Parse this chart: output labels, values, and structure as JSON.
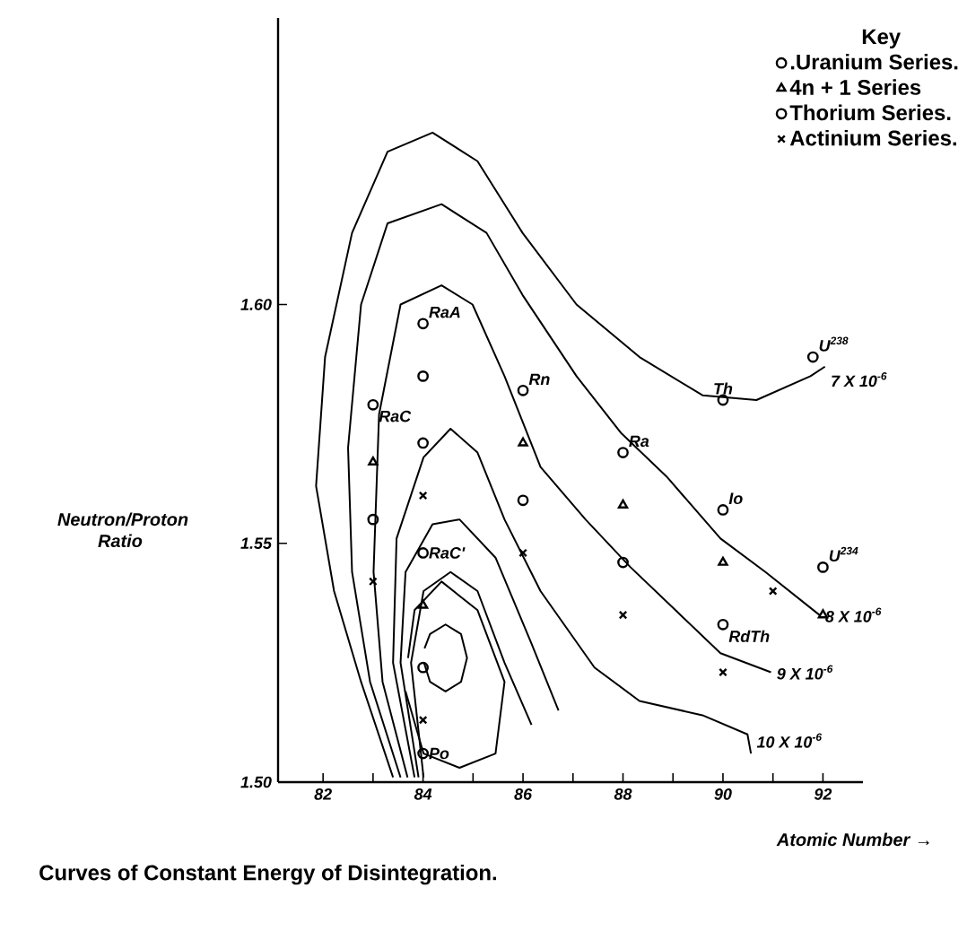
{
  "chart_data": {
    "type": "scatter",
    "title": "Curves of Constant Energy of Disintegration.",
    "xlabel": "Atomic Number →",
    "ylabel": "Neutron/Proton Ratio",
    "legend_title": "Key",
    "legend": "top right",
    "xlim": [
      81.1,
      92.8
    ],
    "ylim": [
      1.5,
      1.66
    ],
    "xticks": [
      82,
      {
        "value": 83,
        "label": null
      },
      84,
      {
        "value": 85,
        "label": null
      },
      86,
      {
        "value": 87,
        "label": null
      },
      88,
      {
        "value": 89,
        "label": null
      },
      90,
      {
        "value": 91,
        "label": null
      },
      92
    ],
    "yticks": [
      {
        "value": 1.5,
        "label": "1.50"
      },
      {
        "value": 1.55,
        "label": "1.55"
      },
      {
        "value": 1.6,
        "label": "1.60"
      }
    ],
    "grid": false,
    "series": [
      {
        "name": ".Uranium Series.",
        "type": "scatter",
        "marker": "circle",
        "color": "#000000",
        "x": [
          91.8,
          90,
          90,
          92,
          88,
          86,
          84,
          83,
          84,
          84
        ],
        "values": [
          1.589,
          1.58,
          1.557,
          1.545,
          1.569,
          1.582,
          1.596,
          1.579,
          1.548,
          1.506
        ]
      },
      {
        "name": "4n + 1 Series",
        "type": "scatter",
        "marker": "triangle",
        "color": "#000000",
        "x": [
          83,
          84,
          86,
          88,
          90,
          92
        ],
        "values": [
          1.567,
          1.537,
          1.571,
          1.558,
          1.546,
          1.535
        ]
      },
      {
        "name": "Thorium Series.",
        "type": "scatter",
        "marker": "circle",
        "color": "#000000",
        "x": [
          83,
          84,
          84,
          86,
          88,
          84,
          90
        ],
        "values": [
          1.555,
          1.585,
          1.571,
          1.559,
          1.546,
          1.524,
          1.533
        ]
      },
      {
        "name": "Actinium Series.",
        "type": "scatter",
        "marker": "cross",
        "color": "#000000",
        "x": [
          83,
          84,
          86,
          88,
          91,
          90,
          84
        ],
        "values": [
          1.542,
          1.56,
          1.548,
          1.535,
          1.54,
          1.523,
          1.513
        ]
      },
      {
        "type": "line",
        "marker": "none",
        "color": "#000000",
        "x": [
          83.4,
          82.76,
          82.22,
          81.86,
          82.04,
          82.58,
          83.29,
          84.19,
          85.09,
          85.99,
          87.07,
          88.33,
          89.59,
          90.67,
          91.75,
          92.04
        ],
        "values": [
          1.501,
          1.521,
          1.54,
          1.562,
          1.589,
          1.615,
          1.632,
          1.636,
          1.63,
          1.615,
          1.6,
          1.589,
          1.581,
          1.58,
          1.585,
          1.587
        ]
      },
      {
        "type": "line",
        "marker": "none",
        "color": "#000000",
        "x": [
          83.55,
          82.94,
          82.58,
          82.5,
          82.76,
          83.29,
          84.37,
          85.27,
          85.99,
          87.07,
          87.97,
          88.87,
          89.95,
          90.85,
          91.93
        ],
        "values": [
          1.501,
          1.521,
          1.544,
          1.57,
          1.6,
          1.617,
          1.621,
          1.615,
          1.602,
          1.585,
          1.573,
          1.564,
          1.551,
          1.544,
          1.535
        ]
      },
      {
        "type": "line",
        "marker": "none",
        "color": "#000000",
        "x": [
          83.69,
          83.19,
          83.01,
          83.12,
          83.55,
          84.37,
          84.99,
          85.63,
          86.35,
          87.25,
          88.15,
          89.05,
          89.95,
          90.96
        ],
        "values": [
          1.501,
          1.521,
          1.544,
          1.577,
          1.6,
          1.604,
          1.6,
          1.585,
          1.566,
          1.555,
          1.545,
          1.536,
          1.527,
          1.523
        ]
      },
      {
        "type": "line",
        "marker": "none",
        "color": "#000000",
        "x": [
          83.83,
          83.4,
          83.47,
          84.01,
          84.55,
          85.09,
          85.63,
          86.35,
          87.43,
          88.33,
          89.59,
          90.49,
          90.56
        ],
        "values": [
          1.501,
          1.525,
          1.551,
          1.568,
          1.574,
          1.569,
          1.555,
          1.54,
          1.524,
          1.517,
          1.514,
          1.51,
          1.506
        ]
      },
      {
        "type": "line",
        "marker": "none",
        "color": "#000000",
        "x": [
          83.91,
          83.55,
          83.65,
          84.19,
          84.73,
          85.45,
          86.17,
          86.71
        ],
        "values": [
          1.501,
          1.525,
          1.544,
          1.554,
          1.555,
          1.547,
          1.529,
          1.515
        ]
      },
      {
        "type": "line",
        "marker": "none",
        "color": "#000000",
        "x": [
          84.01,
          83.76,
          84.01,
          84.55,
          85.09,
          85.63,
          86.17
        ],
        "values": [
          1.501,
          1.525,
          1.54,
          1.544,
          1.54,
          1.525,
          1.512
        ]
      },
      {
        "type": "line",
        "marker": "none",
        "color": "#000000",
        "x": [
          83.7,
          83.83,
          84.37,
          85.09,
          85.63,
          85.45,
          84.73,
          84.01,
          83.65
        ],
        "values": [
          1.526,
          1.536,
          1.542,
          1.536,
          1.521,
          1.506,
          1.503,
          1.506,
          1.519
        ]
      },
      {
        "type": "line",
        "marker": "none",
        "color": "#000000",
        "x": [
          84.03,
          84.14,
          84.45,
          84.76,
          84.88,
          84.76,
          84.45,
          84.14,
          84.02
        ],
        "values": [
          1.528,
          1.531,
          1.533,
          1.531,
          1.526,
          1.521,
          1.519,
          1.521,
          1.525
        ]
      }
    ],
    "annotations": [
      {
        "text": "RaA",
        "x": 84,
        "y": 1.596
      },
      {
        "text": "RaC",
        "x": 83,
        "y": 1.579
      },
      {
        "text": "Rn",
        "x": 86,
        "y": 1.582
      },
      {
        "text": "Ra",
        "x": 88,
        "y": 1.569
      },
      {
        "text": "Th",
        "x": 90,
        "y": 1.58
      },
      {
        "text": "Io",
        "x": 90,
        "y": 1.557
      },
      {
        "text": "U$^{238}$",
        "x": 91.8,
        "y": 1.589
      },
      {
        "text": "U$^{234}$",
        "x": 92,
        "y": 1.545
      },
      {
        "text": "RaC'",
        "x": 84,
        "y": 1.548
      },
      {
        "text": "RdTh",
        "x": 90,
        "y": 1.533
      },
      {
        "text": "Po",
        "x": 84,
        "y": 1.506
      },
      {
        "text": "7 X 10$^{-6}$",
        "x": 92.04,
        "y": 1.587
      },
      {
        "text": "8 X 10$^{-6}$",
        "x": 91.93,
        "y": 1.535
      },
      {
        "text": "9 X 10$^{-6}$",
        "x": 90.96,
        "y": 1.523
      },
      {
        "text": "10 X 10$^{-6}$",
        "x": 90.56,
        "y": 1.506
      }
    ]
  }
}
